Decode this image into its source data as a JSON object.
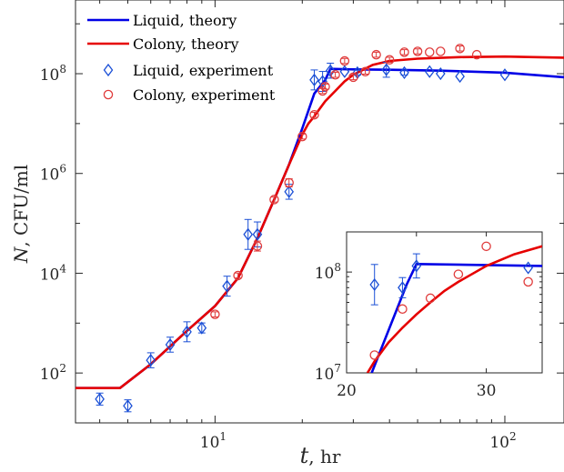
{
  "chart_data": [
    {
      "id": "main",
      "type": "scatter",
      "xlabel_var": "t",
      "xlabel_unit": ", hr",
      "ylabel_var": "N",
      "ylabel_unit": ", CFU/ml",
      "x_scale": "log",
      "y_scale": "log",
      "xlim": [
        3.3,
        160
      ],
      "ylim": [
        10,
        3000000000.0
      ],
      "x_ticks": [
        {
          "value": 10,
          "base": "10",
          "exp": "1"
        },
        {
          "value": 100,
          "base": "10",
          "exp": "2"
        }
      ],
      "y_ticks": [
        {
          "value": 100,
          "base": "10",
          "exp": "2"
        },
        {
          "value": 10000,
          "base": "10",
          "exp": "4"
        },
        {
          "value": 1000000,
          "base": "10",
          "exp": "6"
        },
        {
          "value": 100000000,
          "base": "10",
          "exp": "8"
        }
      ],
      "legend_position": "top-left",
      "series": [
        {
          "name": "Liquid, theory",
          "kind": "line",
          "color": "#0000e6",
          "x": [
            3.3,
            4.7,
            6,
            8,
            10,
            12,
            14,
            16,
            18,
            20,
            22,
            24,
            25,
            30,
            40,
            60,
            100,
            160
          ],
          "y": [
            50,
            50,
            150,
            700,
            2200,
            8000,
            50000,
            300000,
            1500000,
            8000000,
            40000000,
            75000000,
            125000000,
            122000000,
            120000000,
            115000000,
            105000000,
            85000000
          ]
        },
        {
          "name": "Colony, theory",
          "kind": "line",
          "color": "#e60000",
          "x": [
            3.3,
            4.7,
            6,
            8,
            10,
            12,
            14,
            16,
            18,
            20,
            21,
            22,
            23,
            24,
            26,
            28,
            30,
            35,
            40,
            50,
            70,
            100,
            160
          ],
          "y": [
            50,
            50,
            150,
            700,
            2200,
            8000,
            50000,
            300000,
            1500000,
            6000000,
            10000000,
            14000000,
            20000000,
            28000000,
            45000000,
            70000000,
            95000000,
            150000000,
            180000000,
            200000000,
            215000000,
            220000000,
            210000000
          ]
        },
        {
          "name": "Liquid, experiment",
          "kind": "diamond",
          "color": "#1a4fd6",
          "x": [
            4,
            5,
            6,
            7,
            8,
            9,
            11,
            13,
            14,
            18,
            22,
            23.5,
            25,
            28,
            31,
            39,
            45,
            55,
            60,
            70,
            100
          ],
          "y": [
            30,
            22,
            180,
            370,
            670,
            800,
            5500,
            60000,
            60000,
            430000,
            75000000,
            70000000,
            115000000,
            110000000,
            105000000,
            120000000,
            105000000,
            110000000,
            100000000,
            88000000,
            95000000
          ],
          "err": [
            [
              4,
              0.12
            ],
            [
              5,
              0.12
            ],
            [
              6,
              0.15
            ],
            [
              7,
              0.15
            ],
            [
              8,
              0.2
            ],
            [
              9,
              0.1
            ],
            [
              11,
              0.2
            ],
            [
              13,
              0.3
            ],
            [
              14,
              0.25
            ],
            [
              18,
              0.15
            ],
            [
              22,
              0.2
            ],
            [
              23.5,
              0.2
            ],
            [
              25,
              0.15
            ],
            [
              28,
              0
            ],
            [
              31,
              0.05
            ],
            [
              39,
              0.15
            ],
            [
              45,
              0.05
            ],
            [
              55,
              0
            ],
            [
              60,
              0
            ],
            [
              70,
              0
            ],
            [
              100,
              0
            ]
          ]
        },
        {
          "name": "Colony, experiment",
          "kind": "circle",
          "color": "#e03c3c",
          "x": [
            10,
            12,
            14,
            16,
            18,
            20,
            22,
            23.5,
            24,
            26,
            28,
            30,
            33,
            36,
            40,
            45,
            50,
            55,
            60,
            70,
            80
          ],
          "y": [
            1500,
            9000,
            35000,
            300000,
            650000,
            5500000,
            15000000,
            45000000,
            55000000,
            95000000,
            180000000,
            85000000,
            110000000,
            240000000,
            190000000,
            270000000,
            280000000,
            270000000,
            280000000,
            320000000,
            240000000
          ],
          "err": [
            [
              10,
              0.05
            ],
            [
              12,
              0.05
            ],
            [
              14,
              0.1
            ],
            [
              16,
              0.05
            ],
            [
              18,
              0.08
            ],
            [
              20,
              0.05
            ],
            [
              22,
              0.05
            ],
            [
              23.5,
              0.05
            ],
            [
              24,
              0.05
            ],
            [
              26,
              0.05
            ],
            [
              28,
              0.05
            ],
            [
              30,
              0.05
            ],
            [
              33,
              0.05
            ],
            [
              36,
              0.05
            ],
            [
              40,
              0.05
            ],
            [
              45,
              0.05
            ],
            [
              50,
              0.05
            ],
            [
              55,
              0
            ],
            [
              60,
              0
            ],
            [
              70,
              0.05
            ],
            [
              80,
              0
            ]
          ]
        }
      ]
    },
    {
      "id": "inset",
      "type": "scatter",
      "x_scale": "linear",
      "y_scale": "log",
      "xlim": [
        20,
        34
      ],
      "ylim": [
        10000000,
        250000000
      ],
      "x_ticks": [
        {
          "value": 20,
          "label": "20"
        },
        {
          "value": 25,
          "label": ""
        },
        {
          "value": 30,
          "label": "30"
        }
      ],
      "y_ticks": [
        {
          "value": 10000000,
          "base": "10",
          "exp": "7"
        },
        {
          "value": 100000000,
          "base": "10",
          "exp": "8"
        }
      ],
      "series": [
        {
          "name": "Liquid, theory",
          "kind": "line",
          "color": "#0000e6",
          "x": [
            21.8,
            24.3,
            25,
            34
          ],
          "y": [
            10000000,
            75000000,
            120000000,
            115000000
          ]
        },
        {
          "name": "Colony, theory",
          "kind": "line",
          "color": "#e60000",
          "x": [
            21.5,
            22,
            23,
            24,
            25,
            26,
            27,
            28,
            30,
            32,
            34
          ],
          "y": [
            10000000,
            13000000,
            20000000,
            28000000,
            38000000,
            50000000,
            65000000,
            80000000,
            115000000,
            150000000,
            180000000
          ]
        },
        {
          "name": "Liquid, experiment",
          "kind": "diamond",
          "color": "#1a4fd6",
          "x": [
            22,
            24,
            25,
            33
          ],
          "y": [
            75000000,
            70000000,
            115000000,
            110000000
          ],
          "err": [
            [
              22,
              0.2
            ],
            [
              24,
              0.1
            ],
            [
              25,
              0.12
            ],
            [
              33,
              0
            ]
          ]
        },
        {
          "name": "Colony, experiment",
          "kind": "circle",
          "color": "#e03c3c",
          "x": [
            22,
            24,
            26,
            28,
            30,
            33
          ],
          "y": [
            15000000,
            43000000,
            55000000,
            95000000,
            180000000,
            80000000
          ],
          "err": [
            [
              22,
              0
            ],
            [
              24,
              0
            ],
            [
              26,
              0
            ],
            [
              28,
              0
            ],
            [
              30,
              0
            ],
            [
              33,
              0
            ]
          ]
        }
      ]
    }
  ]
}
